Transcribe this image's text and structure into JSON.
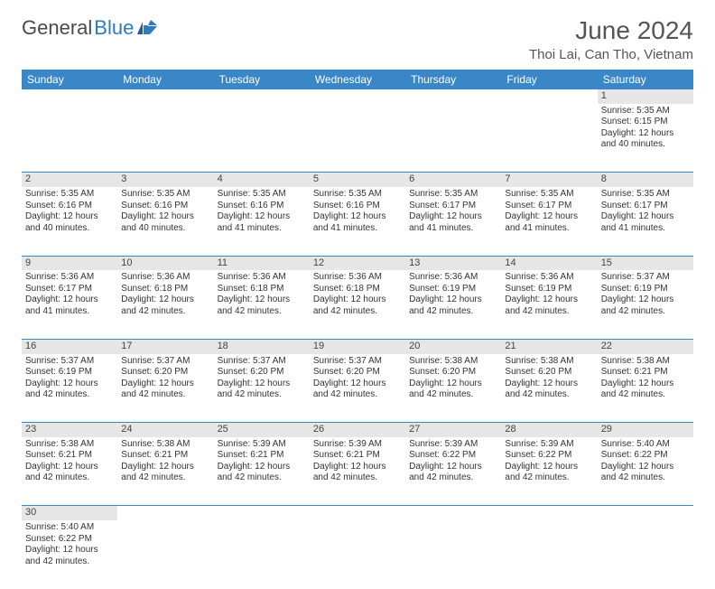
{
  "logo": {
    "general": "General",
    "blue": "Blue"
  },
  "title": "June 2024",
  "location": "Thoi Lai, Can Tho, Vietnam",
  "colors": {
    "header_bg": "#3a87c8",
    "header_text": "#ffffff",
    "daynum_bg": "#e6e6e6",
    "border": "#3a87c8",
    "logo_general": "#4a4a4a",
    "logo_blue": "#2f7bbf"
  },
  "weekdays": [
    "Sunday",
    "Monday",
    "Tuesday",
    "Wednesday",
    "Thursday",
    "Friday",
    "Saturday"
  ],
  "weeks": [
    [
      null,
      null,
      null,
      null,
      null,
      null,
      {
        "d": "1",
        "sr": "5:35 AM",
        "ss": "6:15 PM",
        "dl": "12 hours and 40 minutes."
      }
    ],
    [
      {
        "d": "2",
        "sr": "5:35 AM",
        "ss": "6:16 PM",
        "dl": "12 hours and 40 minutes."
      },
      {
        "d": "3",
        "sr": "5:35 AM",
        "ss": "6:16 PM",
        "dl": "12 hours and 40 minutes."
      },
      {
        "d": "4",
        "sr": "5:35 AM",
        "ss": "6:16 PM",
        "dl": "12 hours and 41 minutes."
      },
      {
        "d": "5",
        "sr": "5:35 AM",
        "ss": "6:16 PM",
        "dl": "12 hours and 41 minutes."
      },
      {
        "d": "6",
        "sr": "5:35 AM",
        "ss": "6:17 PM",
        "dl": "12 hours and 41 minutes."
      },
      {
        "d": "7",
        "sr": "5:35 AM",
        "ss": "6:17 PM",
        "dl": "12 hours and 41 minutes."
      },
      {
        "d": "8",
        "sr": "5:35 AM",
        "ss": "6:17 PM",
        "dl": "12 hours and 41 minutes."
      }
    ],
    [
      {
        "d": "9",
        "sr": "5:36 AM",
        "ss": "6:17 PM",
        "dl": "12 hours and 41 minutes."
      },
      {
        "d": "10",
        "sr": "5:36 AM",
        "ss": "6:18 PM",
        "dl": "12 hours and 42 minutes."
      },
      {
        "d": "11",
        "sr": "5:36 AM",
        "ss": "6:18 PM",
        "dl": "12 hours and 42 minutes."
      },
      {
        "d": "12",
        "sr": "5:36 AM",
        "ss": "6:18 PM",
        "dl": "12 hours and 42 minutes."
      },
      {
        "d": "13",
        "sr": "5:36 AM",
        "ss": "6:19 PM",
        "dl": "12 hours and 42 minutes."
      },
      {
        "d": "14",
        "sr": "5:36 AM",
        "ss": "6:19 PM",
        "dl": "12 hours and 42 minutes."
      },
      {
        "d": "15",
        "sr": "5:37 AM",
        "ss": "6:19 PM",
        "dl": "12 hours and 42 minutes."
      }
    ],
    [
      {
        "d": "16",
        "sr": "5:37 AM",
        "ss": "6:19 PM",
        "dl": "12 hours and 42 minutes."
      },
      {
        "d": "17",
        "sr": "5:37 AM",
        "ss": "6:20 PM",
        "dl": "12 hours and 42 minutes."
      },
      {
        "d": "18",
        "sr": "5:37 AM",
        "ss": "6:20 PM",
        "dl": "12 hours and 42 minutes."
      },
      {
        "d": "19",
        "sr": "5:37 AM",
        "ss": "6:20 PM",
        "dl": "12 hours and 42 minutes."
      },
      {
        "d": "20",
        "sr": "5:38 AM",
        "ss": "6:20 PM",
        "dl": "12 hours and 42 minutes."
      },
      {
        "d": "21",
        "sr": "5:38 AM",
        "ss": "6:20 PM",
        "dl": "12 hours and 42 minutes."
      },
      {
        "d": "22",
        "sr": "5:38 AM",
        "ss": "6:21 PM",
        "dl": "12 hours and 42 minutes."
      }
    ],
    [
      {
        "d": "23",
        "sr": "5:38 AM",
        "ss": "6:21 PM",
        "dl": "12 hours and 42 minutes."
      },
      {
        "d": "24",
        "sr": "5:38 AM",
        "ss": "6:21 PM",
        "dl": "12 hours and 42 minutes."
      },
      {
        "d": "25",
        "sr": "5:39 AM",
        "ss": "6:21 PM",
        "dl": "12 hours and 42 minutes."
      },
      {
        "d": "26",
        "sr": "5:39 AM",
        "ss": "6:21 PM",
        "dl": "12 hours and 42 minutes."
      },
      {
        "d": "27",
        "sr": "5:39 AM",
        "ss": "6:22 PM",
        "dl": "12 hours and 42 minutes."
      },
      {
        "d": "28",
        "sr": "5:39 AM",
        "ss": "6:22 PM",
        "dl": "12 hours and 42 minutes."
      },
      {
        "d": "29",
        "sr": "5:40 AM",
        "ss": "6:22 PM",
        "dl": "12 hours and 42 minutes."
      }
    ],
    [
      {
        "d": "30",
        "sr": "5:40 AM",
        "ss": "6:22 PM",
        "dl": "12 hours and 42 minutes."
      },
      null,
      null,
      null,
      null,
      null,
      null
    ]
  ],
  "labels": {
    "sunrise": "Sunrise: ",
    "sunset": "Sunset: ",
    "daylight": "Daylight: "
  }
}
